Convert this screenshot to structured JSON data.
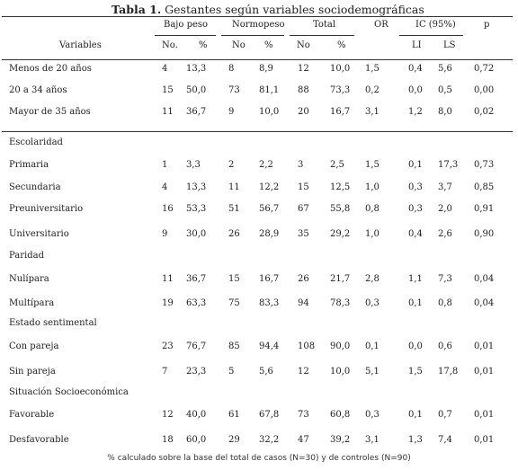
{
  "caption": {
    "label": "Tabla 1.",
    "text": " Gestantes según variables sociodemográficas"
  },
  "header": {
    "variables": "Variables",
    "groups": [
      "Bajo peso",
      "Normopeso",
      "Total",
      "OR",
      "IC (95%)",
      "p"
    ],
    "subs": [
      "No.",
      "%",
      "No",
      "%",
      "No",
      "%",
      "LI",
      "LS"
    ]
  },
  "rows": [
    {
      "label": "Menos de 20 años",
      "v": [
        "4",
        "13,3",
        "8",
        "8,9",
        "12",
        "10,0",
        "1,5",
        "0,4",
        "5,6",
        "0,72"
      ]
    },
    {
      "label": "20 a 34 años",
      "v": [
        "15",
        "50,0",
        "73",
        "81,1",
        "88",
        "73,3",
        "0,2",
        "0,0",
        "0,5",
        "0,00"
      ]
    },
    {
      "label": "Mayor de 35 años",
      "v": [
        "11",
        "36,7",
        "9",
        "10,0",
        "20",
        "16,7",
        "3,1",
        "1,2",
        "8,0",
        "0,02"
      ]
    },
    {
      "section": "Escolaridad"
    },
    {
      "label": "Primaria",
      "v": [
        "1",
        "3,3",
        "2",
        "2,2",
        "3",
        "2,5",
        "1,5",
        "0,1",
        "17,3",
        "0,73"
      ]
    },
    {
      "label": "Secundaria",
      "v": [
        "4",
        "13,3",
        "11",
        "12,2",
        "15",
        "12,5",
        "1,0",
        "0,3",
        "3,7",
        "0,85"
      ]
    },
    {
      "label": "Preuniversitario",
      "v": [
        "16",
        "53,3",
        "51",
        "56,7",
        "67",
        "55,8",
        "0,8",
        "0,3",
        "2,0",
        "0,91"
      ]
    },
    {
      "label": "Universitario",
      "v": [
        "9",
        "30,0",
        "26",
        "28,9",
        "35",
        "29,2",
        "1,0",
        "0,4",
        "2,6",
        "0,90"
      ]
    },
    {
      "section": "Paridad"
    },
    {
      "label": "Nulípara",
      "v": [
        "11",
        "36,7",
        "15",
        "16,7",
        "26",
        "21,7",
        "2,8",
        "1,1",
        "7,3",
        "0,04"
      ]
    },
    {
      "label": "Multípara",
      "v": [
        "19",
        "63,3",
        "75",
        "83,3",
        "94",
        "78,3",
        "0,3",
        "0,1",
        "0,8",
        "0,04"
      ]
    },
    {
      "section": "Estado sentimental"
    },
    {
      "label": "Con pareja",
      "v": [
        "23",
        "76,7",
        "85",
        "94,4",
        "108",
        "90,0",
        "0,1",
        "0,0",
        "0,6",
        "0,01"
      ]
    },
    {
      "label": "Sin pareja",
      "v": [
        "7",
        "23,3",
        "5",
        "5,6",
        "12",
        "10,0",
        "5,1",
        "1,5",
        "17,8",
        "0,01"
      ]
    },
    {
      "section": "Situación Socioeconómica"
    },
    {
      "label": "Favorable",
      "v": [
        "12",
        "40,0",
        "61",
        "67,8",
        "73",
        "60,8",
        "0,3",
        "0,1",
        "0,7",
        "0,01"
      ]
    },
    {
      "label": "Desfavorable",
      "v": [
        "18",
        "60,0",
        "29",
        "32,2",
        "47",
        "39,2",
        "3,1",
        "1,3",
        "7,4",
        "0,01"
      ]
    }
  ],
  "footnote": "% calculado sobre la base del total de casos (N=30) y de controles (N=90)"
}
